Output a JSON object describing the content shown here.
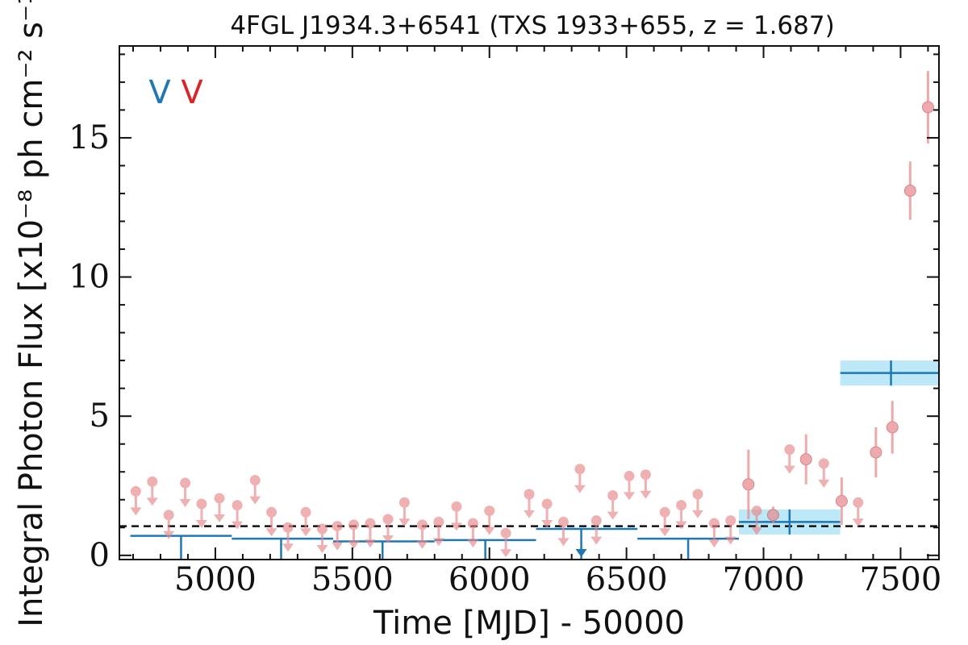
{
  "chart_data": {
    "type": "scatter",
    "title": "4FGL J1934.3+6541 (TXS 1933+655, z = 1.687)",
    "xlabel": "Time [MJD] - 50000",
    "ylabel": "Integral Photon Flux [x10⁻⁸ ph cm⁻² s⁻¹]",
    "xlim": [
      4650,
      7640
    ],
    "ylim": [
      -0.15,
      18.3
    ],
    "xticks": [
      5000,
      5500,
      6000,
      6500,
      7000,
      7500
    ],
    "yticks": [
      0,
      5,
      10,
      15
    ],
    "grid": false,
    "legend_markers": [
      {
        "glyph": "V",
        "color": "#1f77b4"
      },
      {
        "glyph": "V",
        "color": "#d62728"
      }
    ],
    "reference_level": 1.05,
    "colors": {
      "short_bins": "#e8868a",
      "long_bins": "#1f77b4",
      "error_band": "#bde8f7",
      "reference_line": "#111111"
    },
    "series": [
      {
        "cadence": "short",
        "upper_limits": [
          {
            "x": 4710,
            "y": 2.3
          },
          {
            "x": 4770,
            "y": 2.65
          },
          {
            "x": 4830,
            "y": 1.45
          },
          {
            "x": 4890,
            "y": 2.6
          },
          {
            "x": 4950,
            "y": 1.85
          },
          {
            "x": 5015,
            "y": 2.05
          },
          {
            "x": 5080,
            "y": 1.8
          },
          {
            "x": 5145,
            "y": 2.7
          },
          {
            "x": 5205,
            "y": 1.55
          },
          {
            "x": 5265,
            "y": 1.0
          },
          {
            "x": 5330,
            "y": 1.55
          },
          {
            "x": 5390,
            "y": 0.95
          },
          {
            "x": 5445,
            "y": 1.05
          },
          {
            "x": 5505,
            "y": 1.1
          },
          {
            "x": 5565,
            "y": 1.15
          },
          {
            "x": 5630,
            "y": 1.3
          },
          {
            "x": 5690,
            "y": 1.9
          },
          {
            "x": 5755,
            "y": 1.1
          },
          {
            "x": 5815,
            "y": 1.2
          },
          {
            "x": 5880,
            "y": 1.75
          },
          {
            "x": 5940,
            "y": 1.15
          },
          {
            "x": 6000,
            "y": 1.6
          },
          {
            "x": 6060,
            "y": 0.8
          },
          {
            "x": 6145,
            "y": 2.2
          },
          {
            "x": 6210,
            "y": 1.85
          },
          {
            "x": 6270,
            "y": 1.2
          },
          {
            "x": 6330,
            "y": 3.1
          },
          {
            "x": 6390,
            "y": 1.25
          },
          {
            "x": 6450,
            "y": 2.15
          },
          {
            "x": 6510,
            "y": 2.85
          },
          {
            "x": 6570,
            "y": 2.9
          },
          {
            "x": 6640,
            "y": 1.55
          },
          {
            "x": 6700,
            "y": 1.8
          },
          {
            "x": 6760,
            "y": 2.2
          },
          {
            "x": 6820,
            "y": 1.15
          },
          {
            "x": 6880,
            "y": 1.25
          },
          {
            "x": 6975,
            "y": 1.6
          },
          {
            "x": 7095,
            "y": 3.8
          },
          {
            "x": 7220,
            "y": 3.3
          },
          {
            "x": 7345,
            "y": 1.9
          }
        ],
        "detections": [
          {
            "x": 6945,
            "y": 2.55,
            "yerr": 1.25
          },
          {
            "x": 7035,
            "y": 1.45,
            "yerr": 0.3
          },
          {
            "x": 7155,
            "y": 3.45,
            "yerr": 0.9
          },
          {
            "x": 7285,
            "y": 1.95,
            "yerr": 0.85
          },
          {
            "x": 7410,
            "y": 3.7,
            "yerr": 0.9
          },
          {
            "x": 7470,
            "y": 4.6,
            "yerr": 0.95
          },
          {
            "x": 7535,
            "y": 13.1,
            "yerr": 1.05
          },
          {
            "x": 7600,
            "y": 16.1,
            "yerr": 1.3
          }
        ]
      },
      {
        "cadence": "long",
        "upper_limits": [
          {
            "x0": 4690,
            "x1": 5060,
            "y": 0.7,
            "xc": 4875
          },
          {
            "x0": 5060,
            "x1": 5430,
            "y": 0.6,
            "xc": 5240
          },
          {
            "x0": 5430,
            "x1": 5800,
            "y": 0.5,
            "xc": 5610
          },
          {
            "x0": 5800,
            "x1": 6170,
            "y": 0.55,
            "xc": 5985
          },
          {
            "x0": 6170,
            "x1": 6540,
            "y": 0.95,
            "xc": 6335
          },
          {
            "x0": 6540,
            "x1": 6910,
            "y": 0.6,
            "xc": 6725
          }
        ],
        "detections": [
          {
            "x": 7095,
            "xerr": 185,
            "y": 1.2,
            "yerr": 0.45
          },
          {
            "x": 7465,
            "xerr": 185,
            "y": 6.55,
            "yerr": 0.45
          }
        ]
      }
    ]
  }
}
